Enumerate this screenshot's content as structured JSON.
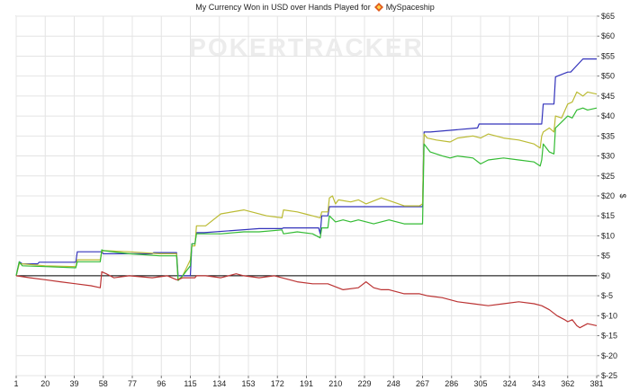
{
  "chart_data": {
    "type": "line",
    "title": "My Currency Won in USD over Hands Played for",
    "player": "MySpaceship",
    "player_icon": "diamond-icon",
    "watermark": "POKERTRACKER",
    "xlabel": "",
    "ylabel": "$",
    "xlim": [
      1,
      381
    ],
    "ylim": [
      -25,
      65
    ],
    "x_ticks": [
      "1",
      "20",
      "39",
      "58",
      "77",
      "96",
      "115",
      "134",
      "153",
      "172",
      "191",
      "210",
      "229",
      "248",
      "267",
      "286",
      "305",
      "324",
      "343",
      "362",
      "381"
    ],
    "y_ticks": [
      "$65",
      "$60",
      "$55",
      "$50",
      "$45",
      "$40",
      "$35",
      "$30",
      "$25",
      "$20",
      "$15",
      "$10",
      "$5",
      "$0",
      "$-5",
      "$-10",
      "$-15",
      "$-20",
      "$-25"
    ],
    "grid": true,
    "legend": "none",
    "colors": {
      "blue": "#3333bb",
      "olive": "#bbbb33",
      "green": "#33bb33",
      "red": "#bb3333",
      "zero_line": "#000000",
      "grid": "#e4e4e4"
    },
    "series": [
      {
        "color_key": "blue",
        "x": [
          1,
          3,
          5,
          15,
          16,
          40,
          41,
          57,
          58,
          90,
          91,
          96,
          106,
          107,
          115,
          116,
          118,
          119,
          124,
          160,
          175,
          176,
          191,
          199,
          200,
          201,
          205,
          206,
          267,
          268,
          272,
          303,
          304,
          345,
          346,
          353,
          354,
          362,
          364,
          372,
          381
        ],
        "y": [
          0,
          3.5,
          3,
          3,
          3.4,
          3.4,
          6,
          6,
          5.5,
          5.5,
          5.8,
          5.8,
          5.8,
          0,
          0,
          8,
          8,
          10.8,
          10.8,
          11.8,
          11.8,
          12,
          12,
          12,
          10.5,
          15,
          15,
          17.3,
          17.3,
          36,
          36,
          37,
          38,
          38,
          43,
          43,
          49.8,
          51,
          51,
          54.3,
          54.3
        ]
      },
      {
        "color_key": "olive",
        "x": [
          1,
          3,
          5,
          20,
          40,
          41,
          56,
          57,
          58,
          75,
          95,
          106,
          107,
          110,
          115,
          116,
          118,
          119,
          125,
          135,
          150,
          165,
          175,
          176,
          185,
          190,
          195,
          200,
          201,
          205,
          206,
          208,
          210,
          212,
          220,
          225,
          230,
          240,
          255,
          265,
          267,
          268,
          270,
          276,
          285,
          290,
          300,
          305,
          310,
          320,
          330,
          340,
          344,
          345,
          346,
          350,
          353,
          354,
          358,
          362,
          365,
          368,
          372,
          375,
          381
        ],
        "y": [
          0,
          3,
          3,
          2.5,
          2.3,
          4,
          4,
          6,
          6.3,
          6,
          5.5,
          5.5,
          -1,
          0,
          4,
          7.5,
          7.5,
          12.5,
          12.5,
          15.5,
          16.5,
          15,
          14.5,
          16.5,
          16,
          15.5,
          15,
          14.5,
          16,
          16,
          19.5,
          20,
          18,
          19,
          18.5,
          19,
          18,
          19.5,
          17.5,
          17.5,
          18,
          35.5,
          34.5,
          34,
          33.5,
          34.5,
          35,
          34.5,
          35.5,
          34.5,
          34,
          33,
          32,
          35,
          36,
          37,
          36,
          40,
          39.5,
          43,
          43.5,
          46,
          45,
          46,
          45.5
        ]
      },
      {
        "color_key": "green",
        "x": [
          1,
          3,
          5,
          20,
          40,
          41,
          56,
          57,
          58,
          75,
          95,
          106,
          107,
          110,
          115,
          116,
          118,
          119,
          125,
          135,
          150,
          160,
          175,
          176,
          185,
          195,
          200,
          201,
          205,
          206,
          210,
          215,
          220,
          225,
          235,
          245,
          255,
          265,
          267,
          268,
          272,
          280,
          285,
          290,
          300,
          305,
          310,
          320,
          330,
          340,
          344,
          345,
          346,
          350,
          353,
          354,
          358,
          362,
          365,
          368,
          372,
          375,
          381
        ],
        "y": [
          0,
          3.5,
          2.5,
          2.3,
          2,
          3.5,
          3.5,
          6.5,
          6.3,
          5.5,
          5,
          5,
          -1.2,
          0,
          2.5,
          8,
          8,
          10.5,
          10.5,
          10.5,
          11,
          11,
          11.5,
          10.5,
          11,
          10.5,
          9.5,
          12,
          12,
          15,
          13.5,
          14,
          13.5,
          14,
          13,
          14,
          13,
          13,
          13,
          33,
          31,
          30,
          29.5,
          30,
          29.5,
          28,
          29,
          29.5,
          29,
          28.5,
          27.5,
          29,
          33,
          31,
          30.5,
          37,
          38.5,
          40,
          39.5,
          41.5,
          42,
          41.5,
          42
        ]
      },
      {
        "color_key": "red",
        "x": [
          1,
          10,
          20,
          30,
          40,
          50,
          56,
          57,
          60,
          65,
          75,
          90,
          100,
          106,
          107,
          110,
          118,
          119,
          125,
          135,
          145,
          150,
          160,
          170,
          180,
          185,
          195,
          205,
          215,
          225,
          230,
          235,
          240,
          245,
          255,
          265,
          270,
          280,
          290,
          300,
          310,
          320,
          330,
          340,
          345,
          350,
          355,
          360,
          362,
          365,
          368,
          370,
          375,
          381
        ],
        "y": [
          0,
          -0.5,
          -1,
          -1.5,
          -2,
          -2.5,
          -3,
          1,
          0.5,
          -0.5,
          0,
          -0.5,
          0,
          -1,
          -1,
          -0.5,
          -0.5,
          0,
          0,
          -0.5,
          0.5,
          0,
          -0.5,
          0,
          -1,
          -1.5,
          -2,
          -2,
          -3.5,
          -3,
          -1.5,
          -3,
          -3.5,
          -3.5,
          -4.5,
          -4.5,
          -5,
          -5.5,
          -6.5,
          -7,
          -7.5,
          -7,
          -6.5,
          -7,
          -7.5,
          -8.5,
          -10,
          -11,
          -11.5,
          -11,
          -12.5,
          -13,
          -12,
          -12.5
        ]
      }
    ]
  }
}
